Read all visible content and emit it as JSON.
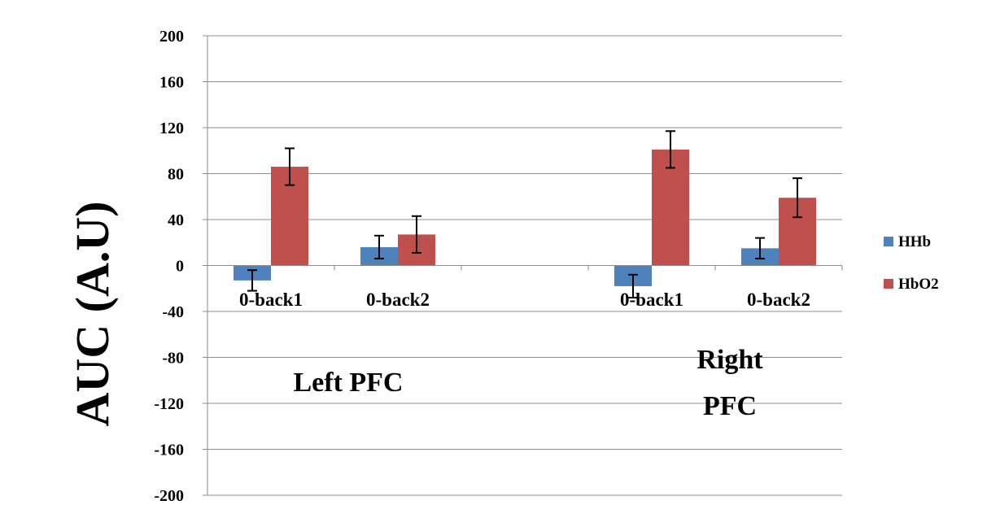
{
  "chart_data": {
    "type": "bar",
    "ylabel": "AUC (A.U)",
    "xlabel": "",
    "ylim": [
      -200,
      200
    ],
    "yticks": [
      200,
      160,
      120,
      80,
      40,
      0,
      -40,
      -80,
      -120,
      -160,
      -200
    ],
    "grid": true,
    "legend_position": "right",
    "categories": [
      "0-back1",
      "0-back2",
      "",
      "0-back1",
      "0-back2"
    ],
    "group_labels": [
      {
        "lines": [
          "Left PFC"
        ]
      },
      {
        "lines": [
          "Right",
          "PFC"
        ]
      }
    ],
    "series": [
      {
        "name": "HHb",
        "color": "#4f81bd",
        "values": [
          -13,
          16,
          null,
          -18,
          15
        ],
        "errors": [
          9,
          10,
          null,
          10,
          9
        ]
      },
      {
        "name": "HbO2",
        "color": "#c0504d",
        "values": [
          86,
          27,
          null,
          101,
          59
        ],
        "errors": [
          16,
          16,
          null,
          16,
          17
        ]
      }
    ]
  }
}
